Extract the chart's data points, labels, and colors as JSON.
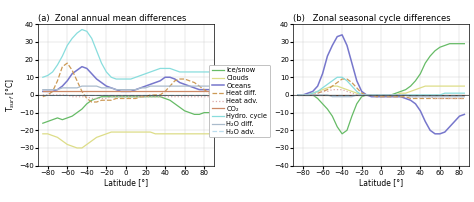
{
  "title_a": "(a)  Zonal annual mean differences",
  "title_b": "(b)   Zonal seasonal cycle differences",
  "xlabel": "Latitude [°]",
  "ylabel_a": "T$_{surf}$ [°C]",
  "ylabel_b": "T$_{surf}$ [°C]",
  "ylim": [
    -40,
    40
  ],
  "xlim": [
    -90,
    90
  ],
  "xticks": [
    -80,
    -60,
    -40,
    -20,
    0,
    20,
    40,
    60,
    80
  ],
  "yticks": [
    -40,
    -30,
    -20,
    -10,
    0,
    10,
    20,
    30,
    40
  ],
  "legend_labels": [
    "Ice/snow",
    "Clouds",
    "Oceans",
    "Heat diff.",
    "Heat adv.",
    "CO₂",
    "Hydro. cycle",
    "H₂O diff.",
    "H₂O adv."
  ],
  "colors": {
    "ice_snow": "#66bb66",
    "clouds": "#dddd88",
    "oceans": "#7777cc",
    "heat_diff": "#cc9955",
    "heat_adv": "#ddaaaa",
    "co2": "#cc8866",
    "hydro": "#88dddd",
    "h2o_diff": "#aabbcc",
    "h2o_adv": "#bbddee"
  },
  "lat": [
    -85,
    -80,
    -75,
    -70,
    -65,
    -60,
    -55,
    -50,
    -45,
    -40,
    -35,
    -30,
    -25,
    -20,
    -15,
    -10,
    -5,
    0,
    5,
    10,
    15,
    20,
    25,
    30,
    35,
    40,
    45,
    50,
    55,
    60,
    65,
    70,
    75,
    80,
    85
  ],
  "panel_a": {
    "ice_snow": [
      -16,
      -15,
      -14,
      -13,
      -14,
      -13,
      -12,
      -10,
      -8,
      -5,
      -3,
      -2,
      -1,
      -1,
      -1,
      -1,
      -1,
      -1,
      -1,
      -1,
      -1,
      -1,
      -1,
      -1,
      -1,
      -2,
      -3,
      -5,
      -7,
      -9,
      -10,
      -11,
      -11,
      -10,
      -10
    ],
    "clouds": [
      -22,
      -22,
      -23,
      -24,
      -26,
      -28,
      -29,
      -30,
      -30,
      -28,
      -26,
      -24,
      -23,
      -22,
      -21,
      -21,
      -21,
      -21,
      -21,
      -21,
      -21,
      -21,
      -21,
      -22,
      -22,
      -22,
      -22,
      -22,
      -22,
      -22,
      -22,
      -22,
      -22,
      -22,
      -22
    ],
    "oceans": [
      2,
      2,
      2,
      3,
      5,
      8,
      12,
      14,
      16,
      15,
      12,
      9,
      7,
      5,
      4,
      3,
      2,
      2,
      2,
      3,
      4,
      5,
      6,
      7,
      8,
      10,
      10,
      9,
      7,
      6,
      5,
      4,
      3,
      3,
      3
    ],
    "heat_diff": [
      -1,
      0,
      2,
      8,
      16,
      18,
      14,
      8,
      2,
      -2,
      -4,
      -4,
      -3,
      -3,
      -3,
      -2,
      -2,
      -2,
      -2,
      -2,
      -1,
      -1,
      0,
      0,
      0,
      2,
      5,
      8,
      9,
      9,
      8,
      7,
      5,
      3,
      1
    ],
    "heat_adv": [
      0,
      0,
      0,
      0,
      0,
      0,
      -1,
      -1,
      -1,
      -1,
      -2,
      -2,
      -2,
      -2,
      -1,
      -1,
      -1,
      -1,
      -1,
      -1,
      -1,
      -1,
      -1,
      -1,
      -1,
      -1,
      -1,
      -1,
      -1,
      -1,
      -1,
      -1,
      -1,
      -1,
      -1
    ],
    "co2": [
      2,
      2,
      2,
      2,
      2,
      2,
      2,
      2,
      2,
      2,
      2,
      2,
      2,
      2,
      2,
      2,
      2,
      2,
      2,
      2,
      2,
      2,
      2,
      2,
      2,
      2,
      2,
      2,
      2,
      2,
      2,
      2,
      2,
      2,
      2
    ],
    "hydro": [
      10,
      11,
      13,
      17,
      22,
      28,
      32,
      35,
      37,
      36,
      32,
      25,
      18,
      13,
      10,
      9,
      9,
      9,
      9,
      10,
      11,
      12,
      13,
      14,
      15,
      15,
      15,
      14,
      13,
      13,
      13,
      13,
      13,
      13,
      13
    ],
    "h2o_diff": [
      3,
      3,
      3,
      3,
      4,
      4,
      4,
      4,
      5,
      5,
      5,
      5,
      4,
      4,
      4,
      3,
      3,
      3,
      3,
      3,
      4,
      4,
      5,
      5,
      5,
      5,
      5,
      5,
      5,
      5,
      5,
      5,
      5,
      5,
      5
    ],
    "h2o_adv": [
      0,
      0,
      0,
      0,
      0,
      0,
      0,
      0,
      0,
      0,
      0,
      0,
      0,
      0,
      0,
      0,
      0,
      0,
      0,
      0,
      0,
      0,
      0,
      0,
      0,
      0,
      0,
      0,
      0,
      0,
      0,
      0,
      0,
      0,
      0
    ]
  },
  "panel_b": {
    "ice_snow": [
      0,
      0,
      0,
      0,
      -2,
      -5,
      -8,
      -12,
      -18,
      -22,
      -20,
      -12,
      -5,
      -1,
      0,
      0,
      0,
      0,
      0,
      0,
      1,
      2,
      3,
      5,
      8,
      12,
      18,
      22,
      25,
      27,
      28,
      29,
      29,
      29,
      29
    ],
    "clouds": [
      0,
      0,
      0,
      1,
      2,
      3,
      4,
      5,
      5,
      4,
      3,
      2,
      1,
      0,
      0,
      0,
      0,
      0,
      0,
      0,
      0,
      1,
      1,
      2,
      3,
      4,
      5,
      5,
      5,
      5,
      5,
      5,
      5,
      5,
      5
    ],
    "oceans": [
      0,
      0,
      1,
      2,
      5,
      12,
      22,
      28,
      33,
      34,
      28,
      18,
      8,
      2,
      0,
      -1,
      -1,
      -1,
      -1,
      -1,
      -1,
      -1,
      -2,
      -3,
      -5,
      -9,
      -15,
      -20,
      -22,
      -22,
      -21,
      -18,
      -15,
      -12,
      -11
    ],
    "heat_diff": [
      0,
      0,
      0,
      0,
      1,
      2,
      3,
      5,
      7,
      9,
      9,
      7,
      4,
      1,
      0,
      0,
      -1,
      -1,
      -1,
      -1,
      -1,
      -1,
      -1,
      -2,
      -2,
      -2,
      -2,
      -2,
      -2,
      -2,
      -2,
      -2,
      -2,
      -2,
      -2
    ],
    "heat_adv": [
      0,
      0,
      0,
      0,
      1,
      2,
      2,
      3,
      3,
      3,
      2,
      1,
      0,
      0,
      0,
      0,
      0,
      0,
      0,
      0,
      0,
      0,
      0,
      -1,
      -1,
      -1,
      -1,
      -1,
      -2,
      -2,
      -2,
      -2,
      -2,
      -2,
      -2
    ],
    "co2": [
      0,
      0,
      0,
      0,
      0,
      0,
      0,
      0,
      0,
      0,
      0,
      0,
      0,
      0,
      0,
      0,
      0,
      0,
      0,
      0,
      0,
      0,
      0,
      0,
      0,
      0,
      0,
      0,
      0,
      0,
      0,
      0,
      0,
      0,
      0
    ],
    "hydro": [
      0,
      0,
      0,
      1,
      2,
      4,
      6,
      8,
      10,
      10,
      8,
      5,
      2,
      0,
      0,
      0,
      0,
      0,
      0,
      0,
      0,
      0,
      0,
      0,
      0,
      0,
      0,
      0,
      0,
      0,
      1,
      1,
      1,
      1,
      1
    ],
    "h2o_diff": [
      0,
      0,
      0,
      0,
      0,
      0,
      0,
      -1,
      -1,
      -1,
      -1,
      -1,
      0,
      0,
      0,
      0,
      0,
      0,
      0,
      0,
      0,
      0,
      0,
      -1,
      -1,
      -1,
      -1,
      -1,
      -1,
      -1,
      -1,
      -1,
      -1,
      -1,
      -1
    ],
    "h2o_adv": [
      0,
      0,
      0,
      0,
      0,
      0,
      0,
      0,
      0,
      0,
      0,
      0,
      0,
      0,
      0,
      0,
      0,
      0,
      0,
      0,
      0,
      0,
      0,
      0,
      0,
      0,
      0,
      0,
      0,
      0,
      0,
      0,
      0,
      0,
      0
    ]
  }
}
